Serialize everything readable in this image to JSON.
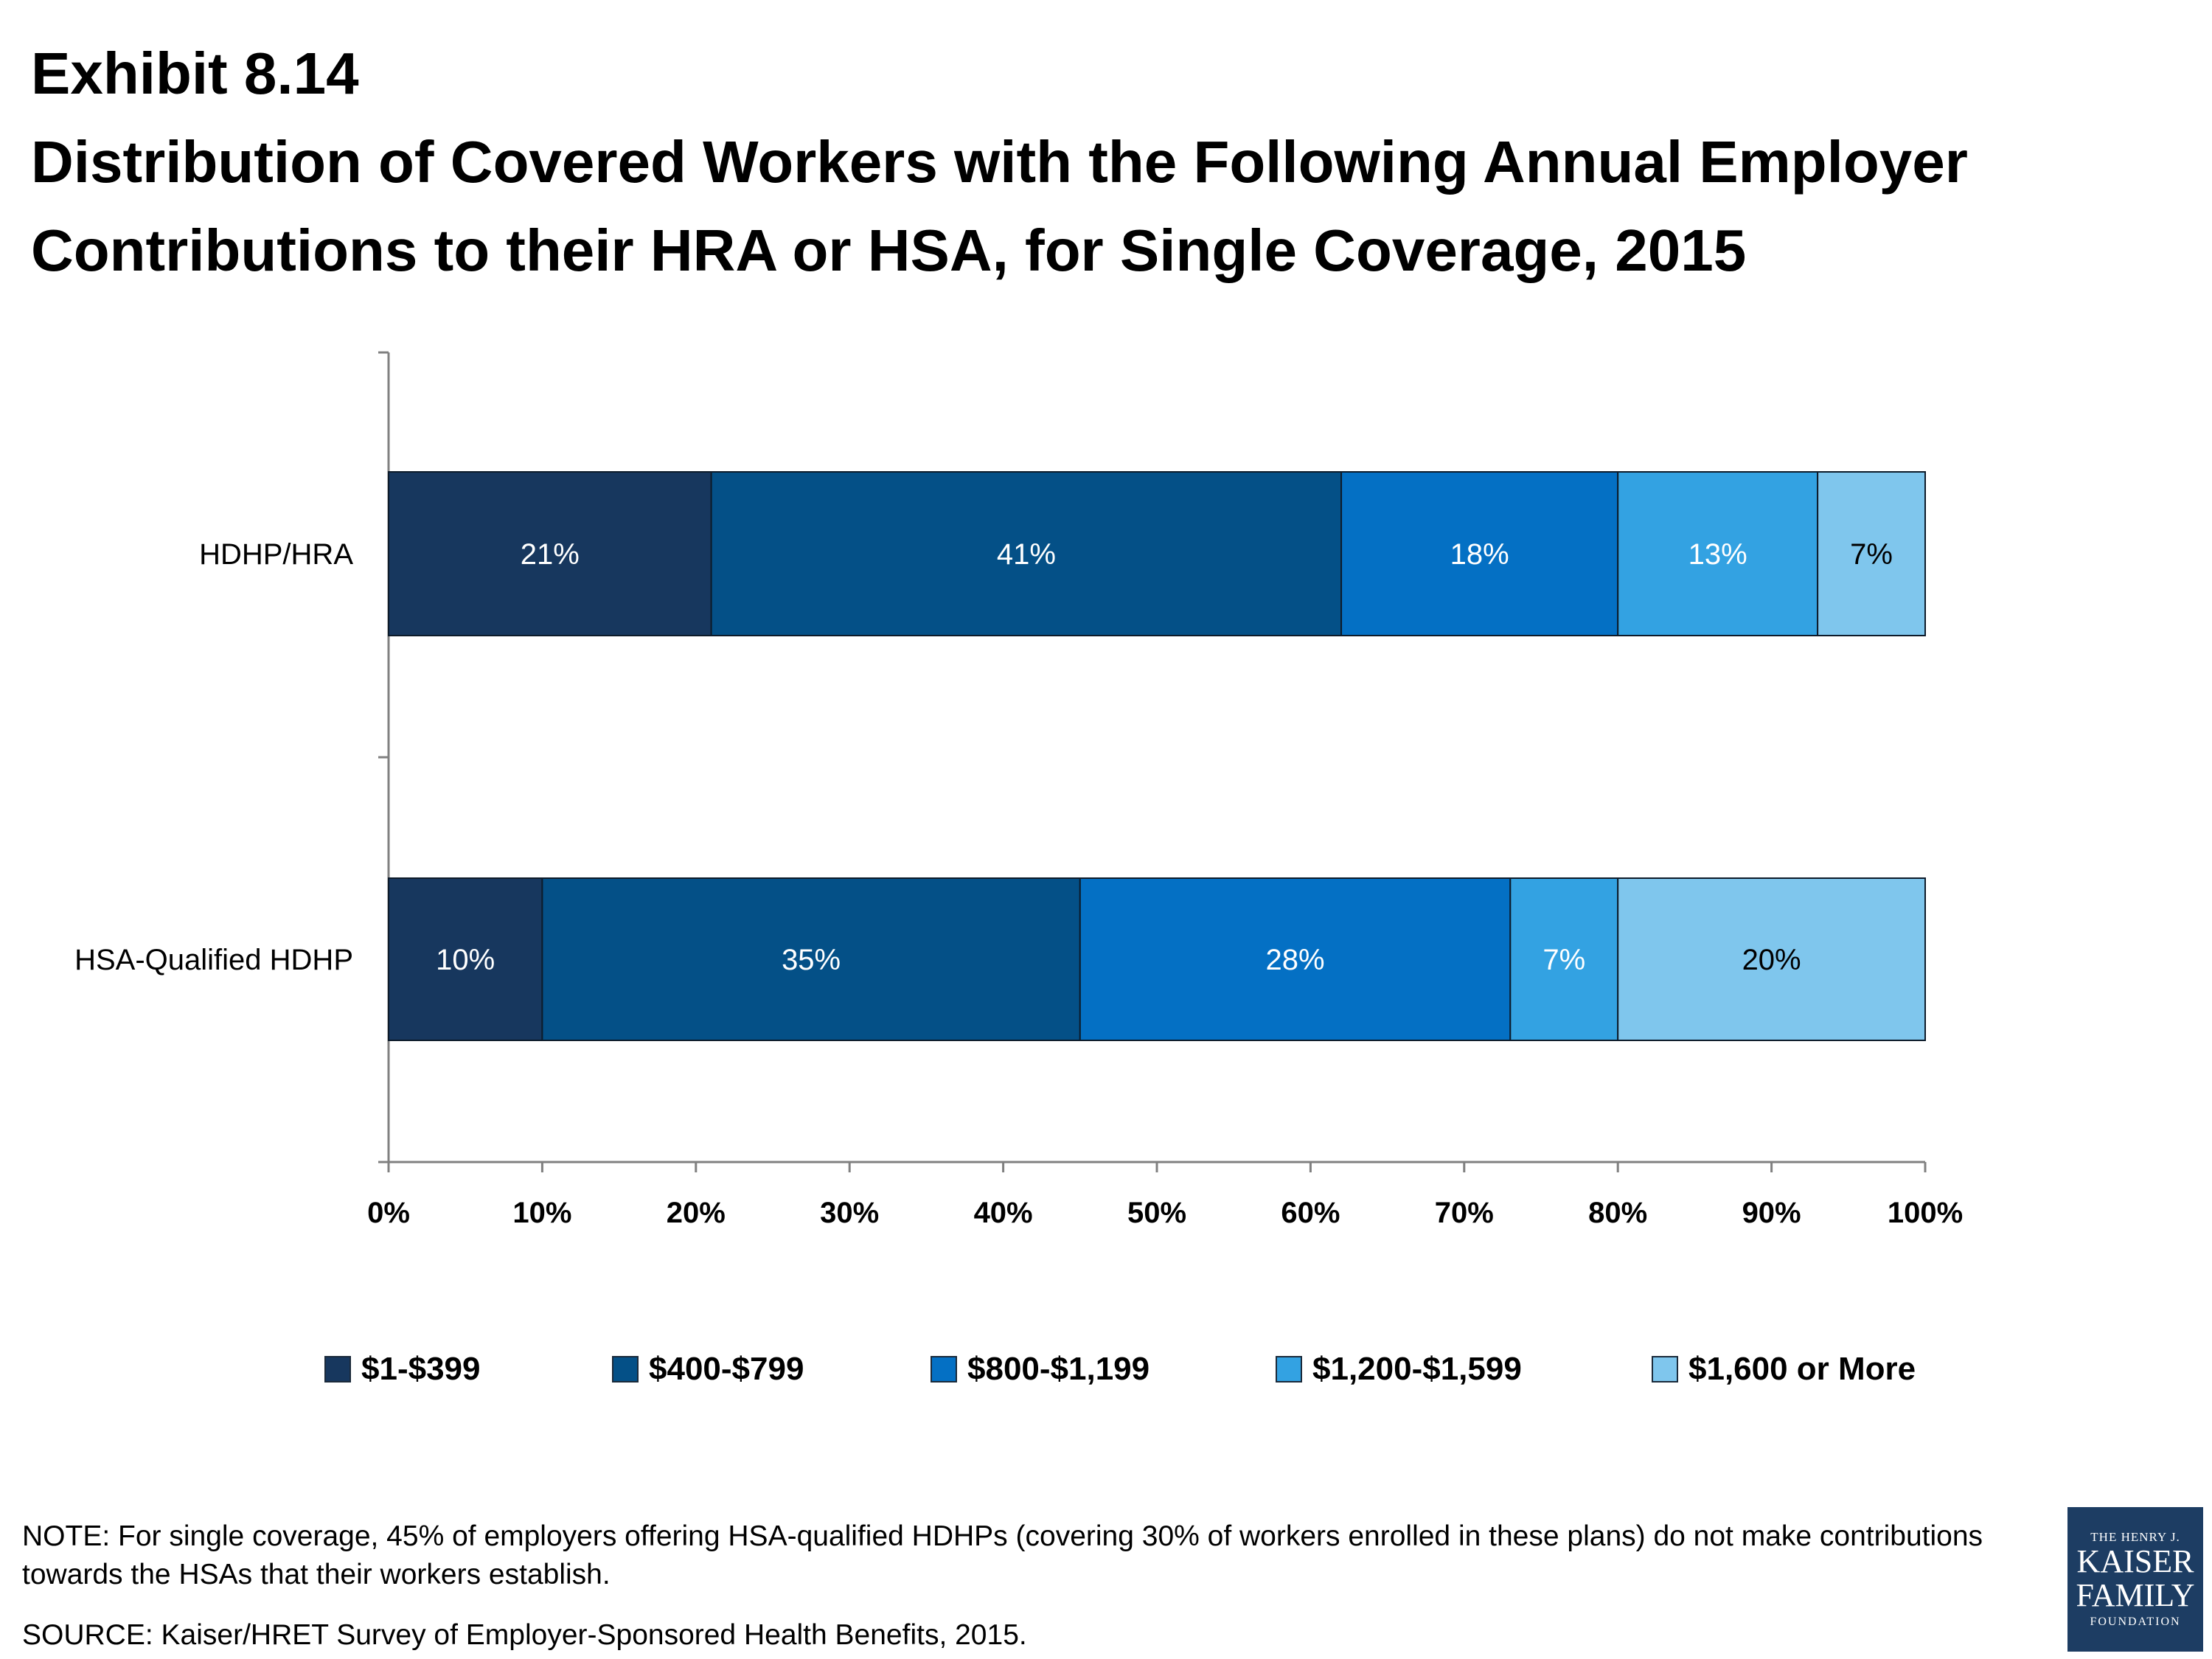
{
  "title": {
    "exhibit": "Exhibit 8.14",
    "line1": "Distribution of Covered Workers with the Following Annual Employer",
    "line2": "Contributions to their HRA or HSA, for Single Coverage, 2015"
  },
  "chart_data": {
    "type": "bar",
    "orientation": "horizontal",
    "stacked": true,
    "categories": [
      "HDHP/HRA",
      "HSA-Qualified HDHP"
    ],
    "series": [
      {
        "name": "$1-$399",
        "values": [
          21,
          10
        ],
        "labels": [
          "21%",
          "10%"
        ],
        "color": "#17375e"
      },
      {
        "name": "$400-$799",
        "values": [
          41,
          35
        ],
        "labels": [
          "41%",
          "35%"
        ],
        "color": "#045087"
      },
      {
        "name": "$800-$1,199",
        "values": [
          18,
          28
        ],
        "labels": [
          "18%",
          "28%"
        ],
        "color": "#0470c4"
      },
      {
        "name": "$1,200-$1,599",
        "values": [
          13,
          7
        ],
        "labels": [
          "13%",
          "7%"
        ],
        "color": "#33a2e2"
      },
      {
        "name": "$1,600 or More",
        "values": [
          7,
          20
        ],
        "labels": [
          "7%",
          "20%"
        ],
        "color": "#7fc6ed"
      }
    ],
    "label_colors": [
      "#ffffff",
      "#ffffff",
      "#ffffff",
      "#ffffff",
      "#000000"
    ],
    "xlim": [
      0,
      100
    ],
    "xticks": [
      0,
      10,
      20,
      30,
      40,
      50,
      60,
      70,
      80,
      90,
      100
    ],
    "xtick_labels": [
      "0%",
      "10%",
      "20%",
      "30%",
      "40%",
      "50%",
      "60%",
      "70%",
      "80%",
      "90%",
      "100%"
    ],
    "legend_position": "bottom",
    "grid": false
  },
  "note": "NOTE:  For single coverage, 45% of employers offering HSA-qualified HDHPs (covering 30% of workers enrolled in these plans) do not make contributions towards the HSAs that their workers establish.",
  "source": "SOURCE:  Kaiser/HRET Survey of Employer-Sponsored Health Benefits, 2015.",
  "logo": {
    "line1": "THE HENRY J.",
    "line2": "KAISER",
    "line3": "FAMILY",
    "line4": "FOUNDATION"
  }
}
